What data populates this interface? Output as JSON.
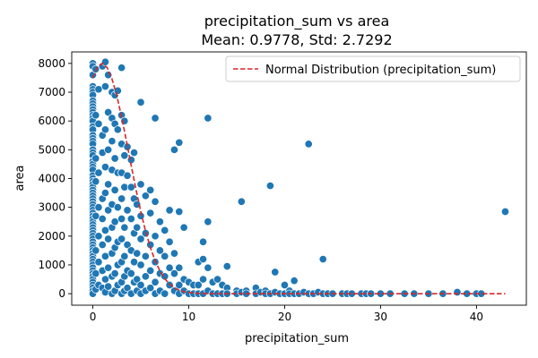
{
  "chart_data": {
    "type": "scatter",
    "title": "precipitation_sum vs area",
    "subtitle": "Mean: 0.9778, Std: 2.7292",
    "xlabel": "precipitation_sum",
    "ylabel": "area",
    "xlim": [
      -2.2,
      45.2
    ],
    "ylim": [
      -400,
      8400
    ],
    "xticks": [
      0,
      10,
      20,
      30,
      40
    ],
    "yticks": [
      0,
      1000,
      2000,
      3000,
      4000,
      5000,
      6000,
      7000,
      8000
    ],
    "grid": false,
    "legend": {
      "placement": "top-right",
      "entries": [
        "Normal Distribution (precipitation_sum)"
      ]
    },
    "colors": {
      "points": "#1f77b4",
      "point_edge": "#ffffff",
      "curve": "#d62728"
    },
    "series": [
      {
        "kind": "points",
        "points": [
          [
            0,
            8000
          ],
          [
            0,
            7900
          ],
          [
            0,
            7600
          ],
          [
            0,
            7200
          ],
          [
            0,
            7100
          ],
          [
            0,
            7000
          ],
          [
            0,
            6900
          ],
          [
            0,
            6700
          ],
          [
            0,
            6600
          ],
          [
            0,
            6500
          ],
          [
            0,
            6400
          ],
          [
            0,
            6300
          ],
          [
            0,
            6200
          ],
          [
            0,
            6100
          ],
          [
            0,
            6000
          ],
          [
            0,
            5800
          ],
          [
            0,
            5700
          ],
          [
            0,
            5500
          ],
          [
            0,
            5400
          ],
          [
            0,
            5300
          ],
          [
            0,
            5200
          ],
          [
            0,
            5000
          ],
          [
            0,
            4900
          ],
          [
            0,
            4800
          ],
          [
            0,
            4600
          ],
          [
            0,
            4500
          ],
          [
            0,
            4400
          ],
          [
            0,
            4300
          ],
          [
            0,
            4100
          ],
          [
            0,
            4000
          ],
          [
            0,
            3900
          ],
          [
            0,
            3800
          ],
          [
            0,
            3700
          ],
          [
            0,
            3600
          ],
          [
            0,
            3500
          ],
          [
            0,
            3400
          ],
          [
            0,
            3300
          ],
          [
            0,
            3200
          ],
          [
            0,
            3100
          ],
          [
            0,
            3000
          ],
          [
            0,
            2900
          ],
          [
            0,
            2800
          ],
          [
            0,
            2700
          ],
          [
            0,
            2600
          ],
          [
            0,
            2500
          ],
          [
            0,
            2400
          ],
          [
            0,
            2300
          ],
          [
            0,
            2200
          ],
          [
            0,
            2100
          ],
          [
            0,
            2000
          ],
          [
            0,
            1900
          ],
          [
            0,
            1800
          ],
          [
            0,
            1700
          ],
          [
            0,
            1600
          ],
          [
            0,
            1500
          ],
          [
            0,
            1400
          ],
          [
            0,
            1300
          ],
          [
            0,
            1200
          ],
          [
            0,
            1100
          ],
          [
            0,
            1000
          ],
          [
            0,
            900
          ],
          [
            0,
            800
          ],
          [
            0,
            700
          ],
          [
            0,
            600
          ],
          [
            0,
            500
          ],
          [
            0,
            400
          ],
          [
            0,
            300
          ],
          [
            0,
            200
          ],
          [
            0,
            100
          ],
          [
            0,
            0
          ],
          [
            0.3,
            7800
          ],
          [
            0.3,
            6200
          ],
          [
            0.3,
            4700
          ],
          [
            0.3,
            3900
          ],
          [
            0.3,
            2700
          ],
          [
            0.3,
            1500
          ],
          [
            0.3,
            700
          ],
          [
            0.3,
            150
          ],
          [
            0.6,
            7100
          ],
          [
            0.6,
            5900
          ],
          [
            0.6,
            4200
          ],
          [
            0.6,
            3000
          ],
          [
            0.6,
            2000
          ],
          [
            0.6,
            1100
          ],
          [
            0.6,
            300
          ],
          [
            1.0,
            7900
          ],
          [
            1.0,
            5500
          ],
          [
            1.0,
            4900
          ],
          [
            1.0,
            3300
          ],
          [
            1.0,
            2600
          ],
          [
            1.0,
            1700
          ],
          [
            1.0,
            800
          ],
          [
            1.0,
            200
          ],
          [
            1.3,
            8050
          ],
          [
            1.3,
            7200
          ],
          [
            1.3,
            5700
          ],
          [
            1.3,
            4400
          ],
          [
            1.3,
            3500
          ],
          [
            1.3,
            2200
          ],
          [
            1.3,
            1300
          ],
          [
            1.3,
            500
          ],
          [
            1.3,
            50
          ],
          [
            1.6,
            7600
          ],
          [
            1.6,
            6300
          ],
          [
            1.6,
            5000
          ],
          [
            1.6,
            3800
          ],
          [
            1.6,
            2900
          ],
          [
            1.6,
            1900
          ],
          [
            1.6,
            900
          ],
          [
            1.6,
            250
          ],
          [
            2.0,
            7000
          ],
          [
            2.0,
            6100
          ],
          [
            2.0,
            5300
          ],
          [
            2.0,
            4300
          ],
          [
            2.0,
            3100
          ],
          [
            2.0,
            2300
          ],
          [
            2.0,
            1400
          ],
          [
            2.0,
            600
          ],
          [
            2.0,
            0
          ],
          [
            2.3,
            6900
          ],
          [
            2.3,
            5900
          ],
          [
            2.3,
            4700
          ],
          [
            2.3,
            3600
          ],
          [
            2.3,
            2500
          ],
          [
            2.3,
            1600
          ],
          [
            2.3,
            700
          ],
          [
            2.3,
            100
          ],
          [
            2.6,
            7050
          ],
          [
            2.6,
            5700
          ],
          [
            2.6,
            4200
          ],
          [
            2.6,
            3000
          ],
          [
            2.6,
            1800
          ],
          [
            2.6,
            1000
          ],
          [
            2.6,
            300
          ],
          [
            3.0,
            7850
          ],
          [
            3.0,
            6200
          ],
          [
            3.0,
            5200
          ],
          [
            3.0,
            4200
          ],
          [
            3.0,
            3300
          ],
          [
            3.0,
            2600
          ],
          [
            3.0,
            1900
          ],
          [
            3.0,
            1100
          ],
          [
            3.0,
            400
          ],
          [
            3.0,
            0
          ],
          [
            3.3,
            6000
          ],
          [
            3.3,
            4800
          ],
          [
            3.3,
            3700
          ],
          [
            3.3,
            2300
          ],
          [
            3.3,
            1300
          ],
          [
            3.3,
            600
          ],
          [
            3.3,
            100
          ],
          [
            3.6,
            5100
          ],
          [
            3.6,
            4100
          ],
          [
            3.6,
            2900
          ],
          [
            3.6,
            1700
          ],
          [
            3.6,
            800
          ],
          [
            3.6,
            200
          ],
          [
            4.0,
            4650
          ],
          [
            4.0,
            3700
          ],
          [
            4.0,
            2600
          ],
          [
            4.0,
            1500
          ],
          [
            4.0,
            700
          ],
          [
            4.0,
            0
          ],
          [
            4.3,
            4900
          ],
          [
            4.3,
            3300
          ],
          [
            4.3,
            2100
          ],
          [
            4.3,
            1100
          ],
          [
            4.3,
            400
          ],
          [
            4.6,
            3100
          ],
          [
            4.6,
            2300
          ],
          [
            4.6,
            1400
          ],
          [
            4.6,
            500
          ],
          [
            4.6,
            100
          ],
          [
            5.0,
            6650
          ],
          [
            5.0,
            3800
          ],
          [
            5.0,
            2700
          ],
          [
            5.0,
            1900
          ],
          [
            5.0,
            1000
          ],
          [
            5.0,
            300
          ],
          [
            5.0,
            0
          ],
          [
            5.5,
            3400
          ],
          [
            5.5,
            2100
          ],
          [
            5.5,
            1300
          ],
          [
            5.5,
            600
          ],
          [
            5.5,
            100
          ],
          [
            6.0,
            3600
          ],
          [
            6.0,
            2800
          ],
          [
            6.0,
            1700
          ],
          [
            6.0,
            800
          ],
          [
            6.0,
            200
          ],
          [
            6.5,
            6100
          ],
          [
            6.5,
            3200
          ],
          [
            6.5,
            2000
          ],
          [
            6.5,
            1100
          ],
          [
            6.5,
            400
          ],
          [
            6.5,
            0
          ],
          [
            7.0,
            2500
          ],
          [
            7.0,
            1500
          ],
          [
            7.0,
            700
          ],
          [
            7.0,
            100
          ],
          [
            7.5,
            2200
          ],
          [
            7.5,
            1300
          ],
          [
            7.5,
            600
          ],
          [
            7.5,
            0
          ],
          [
            8.0,
            2900
          ],
          [
            8.0,
            1800
          ],
          [
            8.0,
            900
          ],
          [
            8.0,
            300
          ],
          [
            8.5,
            5000
          ],
          [
            8.5,
            1400
          ],
          [
            8.5,
            700
          ],
          [
            8.5,
            100
          ],
          [
            9.0,
            5250
          ],
          [
            9.0,
            2850
          ],
          [
            9.0,
            900
          ],
          [
            9.0,
            300
          ],
          [
            9.0,
            0
          ],
          [
            9.5,
            2300
          ],
          [
            9.5,
            500
          ],
          [
            9.5,
            100
          ],
          [
            10.0,
            400
          ],
          [
            10.0,
            0
          ],
          [
            10.5,
            300
          ],
          [
            10.5,
            0
          ],
          [
            11.0,
            1100
          ],
          [
            11.0,
            300
          ],
          [
            11.0,
            0
          ],
          [
            11.5,
            1800
          ],
          [
            11.5,
            1200
          ],
          [
            11.5,
            500
          ],
          [
            11.5,
            0
          ],
          [
            12.0,
            6100
          ],
          [
            12.0,
            2500
          ],
          [
            12.0,
            900
          ],
          [
            12.0,
            100
          ],
          [
            12.5,
            400
          ],
          [
            12.5,
            0
          ],
          [
            13.0,
            500
          ],
          [
            13.0,
            0
          ],
          [
            13.5,
            300
          ],
          [
            13.5,
            0
          ],
          [
            14.0,
            950
          ],
          [
            14.0,
            200
          ],
          [
            14.0,
            0
          ],
          [
            15.0,
            100
          ],
          [
            15.0,
            0
          ],
          [
            15.5,
            3200
          ],
          [
            15.5,
            50
          ],
          [
            16.0,
            100
          ],
          [
            16.0,
            0
          ],
          [
            17.0,
            200
          ],
          [
            17.0,
            0
          ],
          [
            17.5,
            50
          ],
          [
            18.0,
            100
          ],
          [
            18.0,
            0
          ],
          [
            18.5,
            3750
          ],
          [
            18.5,
            0
          ],
          [
            19.0,
            750
          ],
          [
            19.0,
            50
          ],
          [
            19.5,
            0
          ],
          [
            20.0,
            300
          ],
          [
            20.0,
            0
          ],
          [
            20.5,
            100
          ],
          [
            20.5,
            0
          ],
          [
            21.0,
            450
          ],
          [
            21.0,
            0
          ],
          [
            21.5,
            0
          ],
          [
            22.0,
            50
          ],
          [
            22.5,
            5200
          ],
          [
            22.5,
            0
          ],
          [
            23.0,
            0
          ],
          [
            23.5,
            50
          ],
          [
            24.0,
            1200
          ],
          [
            24.0,
            0
          ],
          [
            24.5,
            0
          ],
          [
            25.0,
            0
          ],
          [
            26.0,
            0
          ],
          [
            26.5,
            0
          ],
          [
            27.0,
            0
          ],
          [
            28.0,
            0
          ],
          [
            28.5,
            0
          ],
          [
            29.0,
            0
          ],
          [
            30.0,
            0
          ],
          [
            31.0,
            0
          ],
          [
            32.5,
            0
          ],
          [
            33.5,
            0
          ],
          [
            35.0,
            0
          ],
          [
            36.5,
            0
          ],
          [
            38.0,
            50
          ],
          [
            39.0,
            0
          ],
          [
            40.0,
            0
          ],
          [
            40.5,
            0
          ],
          [
            43.0,
            2850
          ]
        ]
      },
      {
        "kind": "line",
        "name": "Normal Distribution (precipitation_sum)",
        "style": "dashed",
        "x": [
          0.0,
          0.5,
          1.0,
          1.5,
          2.0,
          2.5,
          3.0,
          3.5,
          4.0,
          4.5,
          5.0,
          5.5,
          6.0,
          6.5,
          7.0,
          7.5,
          8.0,
          8.5,
          9.0,
          9.5,
          10.0,
          11.0,
          12.0,
          13.0,
          14.0,
          15.0,
          20.0,
          25.0,
          30.0,
          35.0,
          40.0,
          43.0
        ],
        "y": [
          7500,
          7890,
          8000,
          7850,
          7460,
          6880,
          6140,
          5310,
          4450,
          3620,
          2850,
          2170,
          1600,
          1140,
          790,
          520,
          330,
          210,
          120,
          70,
          40,
          10,
          3,
          0,
          0,
          0,
          0,
          0,
          0,
          0,
          0,
          0
        ]
      }
    ]
  }
}
